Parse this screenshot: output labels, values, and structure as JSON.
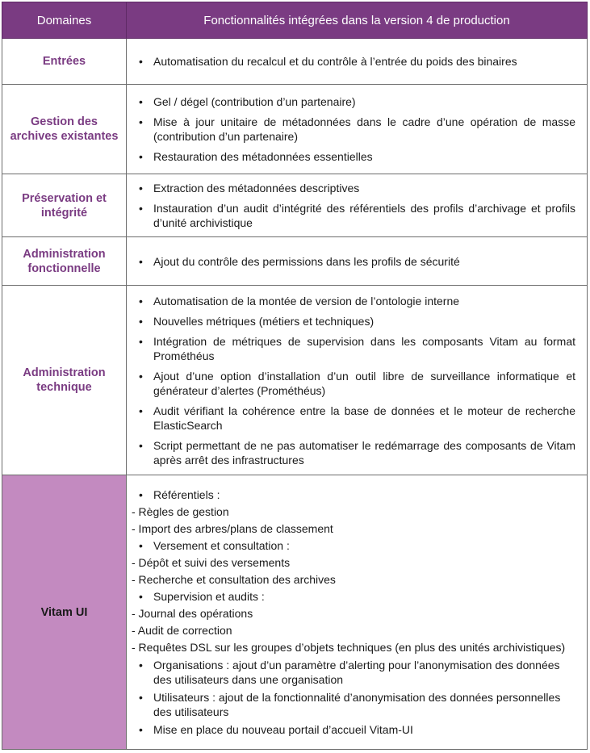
{
  "headers": {
    "domain": "Domaines",
    "features": "Fonctionnalités intégrées dans la version 4 de production"
  },
  "rows": [
    {
      "domain": "Entrées",
      "items": [
        "Automatisation du recalcul et du contrôle à l’entrée du poids des binaires"
      ]
    },
    {
      "domain": "Gestion des archives existantes",
      "items": [
        "Gel / dégel (contribution d’un partenaire)",
        "Mise à jour unitaire de métadonnées dans le cadre d’une opération de masse (contribution d’un partenaire)",
        "Restauration des métadonnées essentielles"
      ]
    },
    {
      "domain": "Préservation et intégrité",
      "items": [
        "Extraction des métadonnées descriptives",
        "Instauration d’un audit d’intégrité des référentiels des profils d’archivage et profils d’unité archivistique"
      ]
    },
    {
      "domain": "Administration fonctionnelle",
      "items": [
        "Ajout du contrôle des permissions dans les profils de sécurité"
      ]
    },
    {
      "domain": "Administration technique",
      "items": [
        "Automatisation de la montée de version de l’ontologie interne",
        "Nouvelles métriques (métiers et techniques)",
        "Intégration de métriques de supervision dans les composants Vitam au format Prométhéus",
        "Ajout d’une option d’installation d’un outil libre de surveillance informatique et générateur d’alertes (Prométhéus)",
        "Audit vérifiant la cohérence entre la base de données et le moteur de recherche ElasticSearch",
        "Script permettant de ne pas automatiser le redémarrage des composants de Vitam après arrêt des infrastructures"
      ]
    }
  ],
  "vitam": {
    "domain": "Vitam UI",
    "lines": [
      {
        "kind": "bullet",
        "text": "Référentiels :"
      },
      {
        "kind": "dash",
        "text": "- Règles de gestion"
      },
      {
        "kind": "dash",
        "text": "- Import des arbres/plans de classement"
      },
      {
        "kind": "bullet",
        "text": "Versement et consultation :"
      },
      {
        "kind": "dash",
        "text": "- Dépôt et suivi des versements"
      },
      {
        "kind": "dash",
        "text": "- Recherche et consultation des archives"
      },
      {
        "kind": "bullet",
        "text": "Supervision et audits :"
      },
      {
        "kind": "dash",
        "text": "- Journal des opérations"
      },
      {
        "kind": "dash",
        "text": "- Audit de correction"
      },
      {
        "kind": "dash",
        "text": "- Requêtes DSL sur les groupes d’objets techniques (en plus des unités archivistiques)"
      },
      {
        "kind": "bullet",
        "text": "Organisations : ajout d’un paramètre d’alerting pour l’anonymisation des données des utilisateurs dans une organisation"
      },
      {
        "kind": "bullet",
        "text": "Utilisateurs : ajout de la fonctionnalité d’anonymisation des données personnelles des utilisateurs"
      },
      {
        "kind": "bullet",
        "text": "Mise en place du nouveau portail d’accueil Vitam-UI"
      }
    ]
  },
  "colors": {
    "header_bg": "#7a3b82",
    "domain_text": "#7a3b82",
    "highlight_bg": "#c38ac0"
  }
}
